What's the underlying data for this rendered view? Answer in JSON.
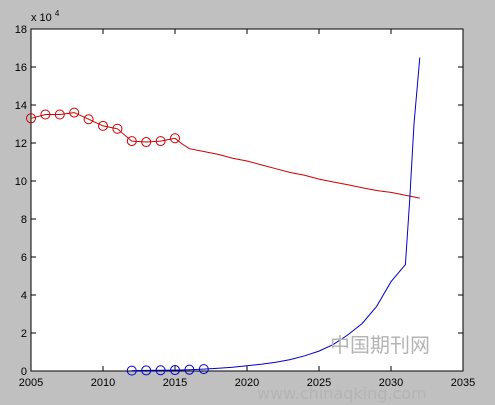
{
  "chart_data": {
    "type": "line",
    "title": "",
    "xlabel": "",
    "ylabel": "",
    "y_exponent_label": "x 10",
    "y_exponent_power": "4",
    "xlim": [
      2005,
      2035
    ],
    "ylim": [
      0,
      18
    ],
    "x_ticks": [
      "2005",
      "2010",
      "2015",
      "2020",
      "2025",
      "2030",
      "2035"
    ],
    "y_ticks": [
      "0",
      "2",
      "4",
      "6",
      "8",
      "10",
      "12",
      "14",
      "16",
      "18"
    ],
    "grid": false,
    "legend": "none",
    "series": [
      {
        "color": "#cc0000",
        "marker": "circle",
        "x": [
          2005,
          2006,
          2007,
          2008,
          2009,
          2010,
          2011,
          2012,
          2013,
          2014,
          2015
        ],
        "y": [
          13.3,
          13.5,
          13.5,
          13.6,
          13.25,
          12.9,
          12.75,
          12.1,
          12.05,
          12.1,
          12.25
        ]
      },
      {
        "color": "#cc0000",
        "marker": "none",
        "x": [
          2015,
          2015.5,
          2016,
          2017,
          2018,
          2019,
          2020,
          2021,
          2022,
          2023,
          2024,
          2025,
          2026,
          2027,
          2028,
          2029,
          2030,
          2031,
          2032
        ],
        "y": [
          12.25,
          11.95,
          11.7,
          11.55,
          11.4,
          11.2,
          11.05,
          10.85,
          10.65,
          10.45,
          10.3,
          10.1,
          9.95,
          9.8,
          9.65,
          9.5,
          9.4,
          9.25,
          9.1
        ]
      },
      {
        "color": "#0000cc",
        "marker": "circle",
        "x": [
          2012,
          2013,
          2014,
          2015,
          2016,
          2017
        ],
        "y": [
          0.02,
          0.03,
          0.04,
          0.05,
          0.07,
          0.1
        ]
      },
      {
        "color": "#0000cc",
        "marker": "none",
        "x": [
          2017,
          2018,
          2019,
          2020,
          2021,
          2022,
          2023,
          2024,
          2025,
          2026,
          2027,
          2028,
          2029,
          2030,
          2031,
          2031.3,
          2031.6,
          2032
        ],
        "y": [
          0.1,
          0.14,
          0.2,
          0.28,
          0.36,
          0.46,
          0.6,
          0.8,
          1.05,
          1.4,
          1.9,
          2.5,
          3.4,
          4.7,
          5.6,
          9.0,
          13.0,
          16.5
        ]
      }
    ]
  },
  "watermark": {
    "cn_text": "中国期刊网",
    "url_text": "www.chinaqking.com"
  }
}
